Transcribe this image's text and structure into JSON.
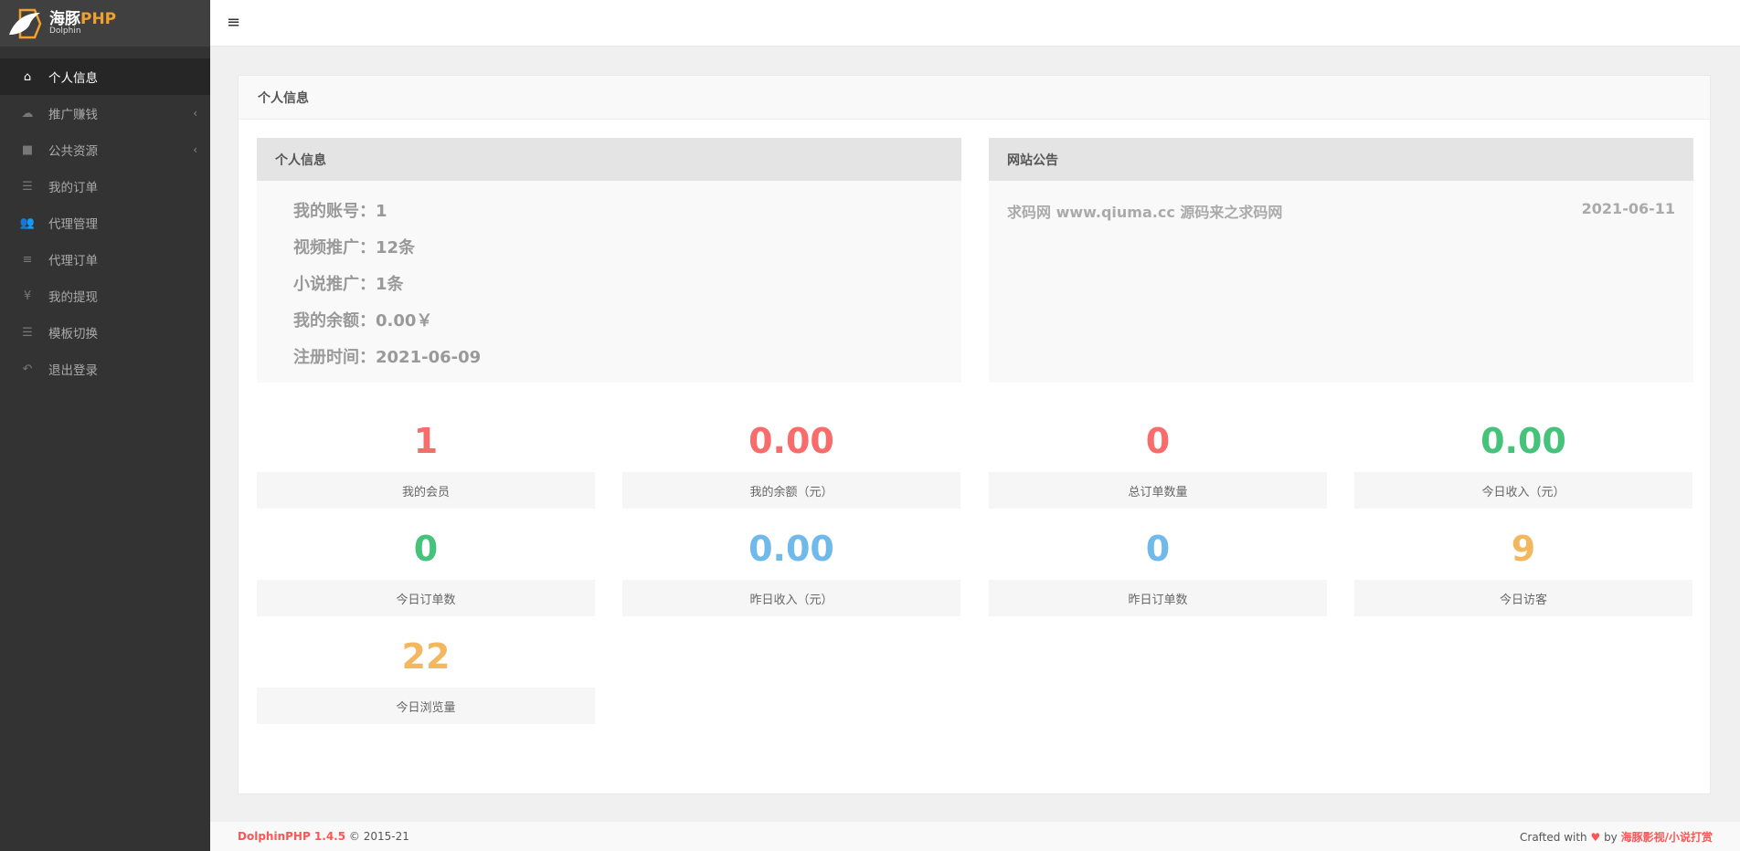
{
  "logo": {
    "cn_a": "海豚",
    "cn_b": "PHP",
    "en": "Dolphin"
  },
  "sidebar": {
    "items": [
      {
        "label": "个人信息",
        "icon": "home-icon",
        "glyph": "⌂",
        "active": true
      },
      {
        "label": "推广赚钱",
        "icon": "cloud-icon",
        "glyph": "☁",
        "chevron": "‹"
      },
      {
        "label": "公共资源",
        "icon": "video-camera-icon",
        "glyph": "■",
        "chevron": "‹"
      },
      {
        "label": "我的订单",
        "icon": "list-icon",
        "glyph": "☰"
      },
      {
        "label": "代理管理",
        "icon": "users-icon",
        "glyph": "👥"
      },
      {
        "label": "代理订单",
        "icon": "bars-icon",
        "glyph": "≡"
      },
      {
        "label": "我的提现",
        "icon": "yen-icon",
        "glyph": "¥"
      },
      {
        "label": "模板切换",
        "icon": "list-icon",
        "glyph": "☰"
      },
      {
        "label": "退出登录",
        "icon": "reply-icon",
        "glyph": "↶"
      }
    ]
  },
  "header": {
    "menu_icon": "≡"
  },
  "panel": {
    "title": "个人信息"
  },
  "profile": {
    "title": "个人信息",
    "rows": [
      "我的账号：1",
      "视频推广：12条",
      "小说推广：1条",
      "我的余额：0.00￥",
      "注册时间：2021-06-09"
    ]
  },
  "notice": {
    "title": "网站公告",
    "items": [
      {
        "text": "求码网 www.qiuma.cc 源码来之求码网",
        "date": "2021-06-11"
      }
    ]
  },
  "colors": {
    "red": "#f86c6b",
    "green": "#46c37b",
    "blue": "#70b9eb",
    "orange": "#f3b760"
  },
  "stats": [
    {
      "value": "1",
      "label": "我的会员",
      "color": "#f86c6b"
    },
    {
      "value": "0.00",
      "label": "我的余额（元）",
      "color": "#f86c6b"
    },
    {
      "value": "0",
      "label": "总订单数量",
      "color": "#f86c6b"
    },
    {
      "value": "0.00",
      "label": "今日收入（元）",
      "color": "#46c37b"
    },
    {
      "value": "0",
      "label": "今日订单数",
      "color": "#46c37b"
    },
    {
      "value": "0.00",
      "label": "昨日收入（元）",
      "color": "#70b9eb"
    },
    {
      "value": "0",
      "label": "昨日订单数",
      "color": "#70b9eb"
    },
    {
      "value": "9",
      "label": "今日访客",
      "color": "#f3b760"
    },
    {
      "value": "22",
      "label": "今日浏览量",
      "color": "#f3b760"
    }
  ],
  "footer": {
    "brand": "DolphinPHP 1.4.5",
    "copy": " © 2015-21",
    "crafted": "Crafted with ",
    "heart": "♥",
    "by": " by ",
    "author": "海豚影视/小说打赏"
  }
}
